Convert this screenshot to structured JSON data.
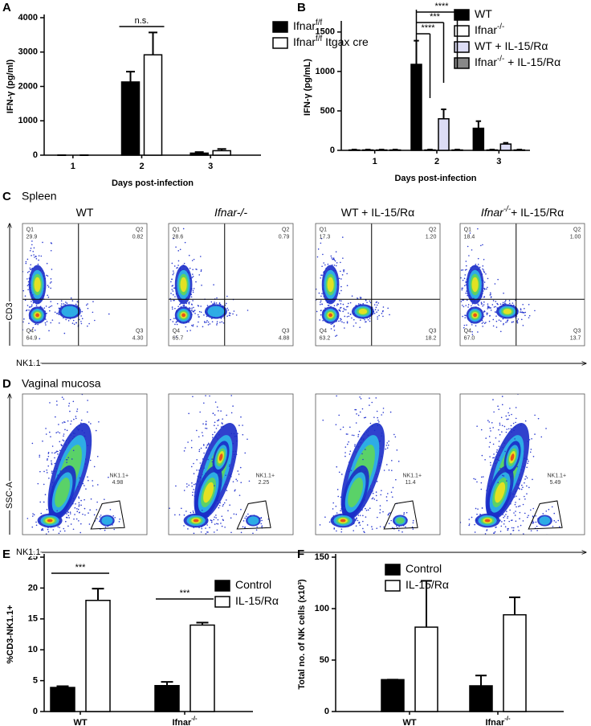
{
  "chart_data": [
    {
      "panel": "A",
      "type": "bar",
      "ylabel": "IFN-γ (pg/ml)",
      "xlabel": "Days post-infection",
      "categories": [
        "1",
        "2",
        "3"
      ],
      "series": [
        {
          "name": "Ifnar",
          "name_sup": "f/f",
          "color": "#000000",
          "values": [
            0,
            2130,
            60
          ],
          "errors": [
            0,
            300,
            30
          ]
        },
        {
          "name": "Ifnar",
          "name_sup": "f/f",
          "name_suffix": " Itgax cre",
          "color": "#ffffff",
          "values": [
            0,
            2920,
            130
          ],
          "errors": [
            0,
            650,
            50
          ]
        }
      ],
      "ylim": [
        0,
        4000
      ],
      "yticks": [
        0,
        1000,
        2000,
        3000,
        4000
      ],
      "annotations": [
        "n.s."
      ],
      "legend": "top-right"
    },
    {
      "panel": "B",
      "type": "bar",
      "ylabel": "IFN-γ (pg/mL)",
      "xlabel": "Days post-infection",
      "categories": [
        "1",
        "2",
        "3"
      ],
      "series": [
        {
          "name": "WT",
          "color": "#000000",
          "values": [
            5,
            1090,
            280
          ],
          "errors": [
            5,
            300,
            90
          ]
        },
        {
          "name": "Ifnar",
          "name_sup": "-/-",
          "color": "#ffffff",
          "values": [
            5,
            5,
            5
          ],
          "errors": [
            5,
            5,
            5
          ]
        },
        {
          "name": "WT + IL-15/Rα",
          "color": "#dcdcf5",
          "values": [
            5,
            400,
            80
          ],
          "errors": [
            5,
            120,
            15
          ]
        },
        {
          "name": "Ifnar",
          "name_sup": "-/-",
          "name_suffix": " + IL-15/Rα",
          "color": "#888888",
          "values": [
            5,
            5,
            5
          ],
          "errors": [
            5,
            5,
            5
          ]
        }
      ],
      "ylim": [
        0,
        1600
      ],
      "yticks": [
        0,
        500,
        1000,
        1500
      ],
      "annotations": [
        "****",
        "***",
        "****"
      ],
      "legend": "top-right"
    },
    {
      "panel": "E",
      "type": "bar",
      "ylabel": "%CD3-NK1.1+",
      "categories": [
        "WT",
        "Ifnar"
      ],
      "category_sups": {
        "1": "-/-"
      },
      "series": [
        {
          "name": "Control",
          "color": "#000000",
          "values": [
            3.9,
            4.2
          ],
          "errors": [
            0.2,
            0.6
          ]
        },
        {
          "name": "IL-15/Rα",
          "color": "#ffffff",
          "values": [
            18,
            14
          ],
          "errors": [
            1.9,
            0.4
          ]
        }
      ],
      "ylim": [
        0,
        25
      ],
      "yticks": [
        0,
        5,
        10,
        15,
        20,
        25
      ],
      "annotations": [
        "***",
        "***"
      ],
      "legend": "top-right"
    },
    {
      "panel": "F",
      "type": "bar",
      "ylabel": "Total no. of NK cells (x10³)",
      "categories": [
        "WT",
        "Ifnar"
      ],
      "category_sups": {
        "1": "-/-"
      },
      "series": [
        {
          "name": "Control",
          "color": "#000000",
          "values": [
            31,
            25
          ],
          "errors": [
            0,
            10
          ]
        },
        {
          "name": "IL-15/Rα",
          "color": "#ffffff",
          "values": [
            82,
            94
          ],
          "errors": [
            45,
            17
          ]
        }
      ],
      "ylim": [
        0,
        150
      ],
      "yticks": [
        0,
        50,
        100,
        150
      ],
      "annotations": [],
      "legend": "top-left"
    }
  ],
  "flow_panels": [
    {
      "panel": "C",
      "title": "Spleen",
      "xlabel": "NK1.1",
      "ylabel": "CD3",
      "quadrants": [
        "Q1",
        "Q2",
        "Q3",
        "Q4"
      ],
      "plots": [
        {
          "title": "WT",
          "values": [
            "29.9",
            "0.82",
            "4.30",
            "64.9"
          ]
        },
        {
          "title": "Ifnar-/-",
          "values": [
            "28.6",
            "0.79",
            "4.88",
            "65.7"
          ]
        },
        {
          "title": "WT + IL-15/Rα",
          "values": [
            "17.3",
            "1.20",
            "18.2",
            "63.2"
          ]
        },
        {
          "title": "Ifnar",
          "title_sup": "-/-",
          "title_suffix": "+ IL-15/Rα",
          "values": [
            "18.4",
            "1.00",
            "13.7",
            "67.0"
          ]
        }
      ]
    },
    {
      "panel": "D",
      "title": "Vaginal mucosa",
      "xlabel": "NK1.1",
      "ylabel": "SSC-A",
      "gate": "NK1.1+",
      "plots": [
        {
          "value": "4.98"
        },
        {
          "value": "2.25"
        },
        {
          "value": "11.4"
        },
        {
          "value": "5.49"
        }
      ]
    }
  ]
}
